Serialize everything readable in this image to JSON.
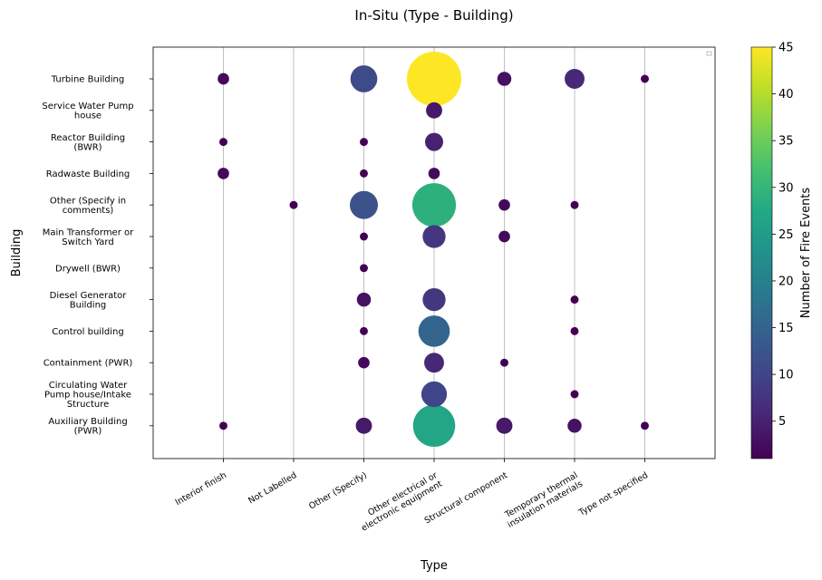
{
  "chart_data": {
    "type": "scatter",
    "title": "In-Situ (Type - Building)",
    "xlabel": "Type",
    "ylabel": "Building",
    "x_categories": [
      "Interior finish",
      "Not Labelled",
      "Other (Specify)",
      "Other electrical or\nelectronic equipment",
      "Structural component",
      "Temporary thermal\ninsulation materials",
      "Type not specified"
    ],
    "y_categories": [
      "Turbine Building",
      "Service Water Pump\nhouse",
      "Reactor Building\n(BWR)",
      "Radwaste Building",
      "Other (Specify in\ncomments)",
      "Main Transformer or\nSwitch Yard",
      "Drywell (BWR)",
      "Diesel Generator\nBuilding",
      "Control building",
      "Containment (PWR)",
      "Circulating Water\nPump house/Intake\nStructure",
      "Auxiliary Building\n(PWR)"
    ],
    "points": [
      {
        "x": "Interior finish",
        "y": "Turbine Building",
        "value": 2
      },
      {
        "x": "Other (Specify)",
        "y": "Turbine Building",
        "value": 11
      },
      {
        "x": "Other electrical or\nelectronic equipment",
        "y": "Turbine Building",
        "value": 45
      },
      {
        "x": "Structural component",
        "y": "Turbine Building",
        "value": 3
      },
      {
        "x": "Temporary thermal\ninsulation materials",
        "y": "Turbine Building",
        "value": 6
      },
      {
        "x": "Type not specified",
        "y": "Turbine Building",
        "value": 1
      },
      {
        "x": "Other electrical or\nelectronic equipment",
        "y": "Service Water Pump\nhouse",
        "value": 4
      },
      {
        "x": "Interior finish",
        "y": "Reactor Building\n(BWR)",
        "value": 1
      },
      {
        "x": "Other (Specify)",
        "y": "Reactor Building\n(BWR)",
        "value": 1
      },
      {
        "x": "Other electrical or\nelectronic equipment",
        "y": "Reactor Building\n(BWR)",
        "value": 5
      },
      {
        "x": "Interior finish",
        "y": "Radwaste Building",
        "value": 2
      },
      {
        "x": "Other (Specify)",
        "y": "Radwaste Building",
        "value": 1
      },
      {
        "x": "Other electrical or\nelectronic equipment",
        "y": "Radwaste Building",
        "value": 2
      },
      {
        "x": "Not Labelled",
        "y": "Other (Specify in\ncomments)",
        "value": 1
      },
      {
        "x": "Other (Specify)",
        "y": "Other (Specify in\ncomments)",
        "value": 12
      },
      {
        "x": "Other electrical or\nelectronic equipment",
        "y": "Other (Specify in\ncomments)",
        "value": 29
      },
      {
        "x": "Structural component",
        "y": "Other (Specify in\ncomments)",
        "value": 2
      },
      {
        "x": "Temporary thermal\ninsulation materials",
        "y": "Other (Specify in\ncomments)",
        "value": 1
      },
      {
        "x": "Other (Specify)",
        "y": "Main Transformer or\nSwitch Yard",
        "value": 1
      },
      {
        "x": "Other electrical or\nelectronic equipment",
        "y": "Main Transformer or\nSwitch Yard",
        "value": 8
      },
      {
        "x": "Structural component",
        "y": "Main Transformer or\nSwitch Yard",
        "value": 2
      },
      {
        "x": "Other (Specify)",
        "y": "Drywell (BWR)",
        "value": 1
      },
      {
        "x": "Other (Specify)",
        "y": "Diesel Generator\nBuilding",
        "value": 3
      },
      {
        "x": "Other electrical or\nelectronic equipment",
        "y": "Diesel Generator\nBuilding",
        "value": 8
      },
      {
        "x": "Temporary thermal\ninsulation materials",
        "y": "Diesel Generator\nBuilding",
        "value": 1
      },
      {
        "x": "Other (Specify)",
        "y": "Control building",
        "value": 1
      },
      {
        "x": "Other electrical or\nelectronic equipment",
        "y": "Control building",
        "value": 15
      },
      {
        "x": "Temporary thermal\ninsulation materials",
        "y": "Control building",
        "value": 1
      },
      {
        "x": "Other (Specify)",
        "y": "Containment (PWR)",
        "value": 2
      },
      {
        "x": "Other electrical or\nelectronic equipment",
        "y": "Containment (PWR)",
        "value": 6
      },
      {
        "x": "Structural component",
        "y": "Containment (PWR)",
        "value": 1
      },
      {
        "x": "Other electrical or\nelectronic equipment",
        "y": "Circulating Water\nPump house/Intake\nStructure",
        "value": 10
      },
      {
        "x": "Temporary thermal\ninsulation materials",
        "y": "Circulating Water\nPump house/Intake\nStructure",
        "value": 1
      },
      {
        "x": "Interior finish",
        "y": "Auxiliary Building\n(PWR)",
        "value": 1
      },
      {
        "x": "Other (Specify)",
        "y": "Auxiliary Building\n(PWR)",
        "value": 4
      },
      {
        "x": "Other electrical or\nelectronic equipment",
        "y": "Auxiliary Building\n(PWR)",
        "value": 27
      },
      {
        "x": "Structural component",
        "y": "Auxiliary Building\n(PWR)",
        "value": 4
      },
      {
        "x": "Temporary thermal\ninsulation materials",
        "y": "Auxiliary Building\n(PWR)",
        "value": 3
      },
      {
        "x": "Type not specified",
        "y": "Auxiliary Building\n(PWR)",
        "value": 1
      }
    ],
    "size_encodes": "value",
    "color_encodes": "value",
    "colorbar": {
      "label": "Number of Fire Events",
      "colormap": "viridis",
      "min": 1,
      "max": 45,
      "ticks": [
        5,
        10,
        15,
        20,
        25,
        30,
        35,
        40,
        45
      ]
    },
    "grid": "vertical"
  }
}
